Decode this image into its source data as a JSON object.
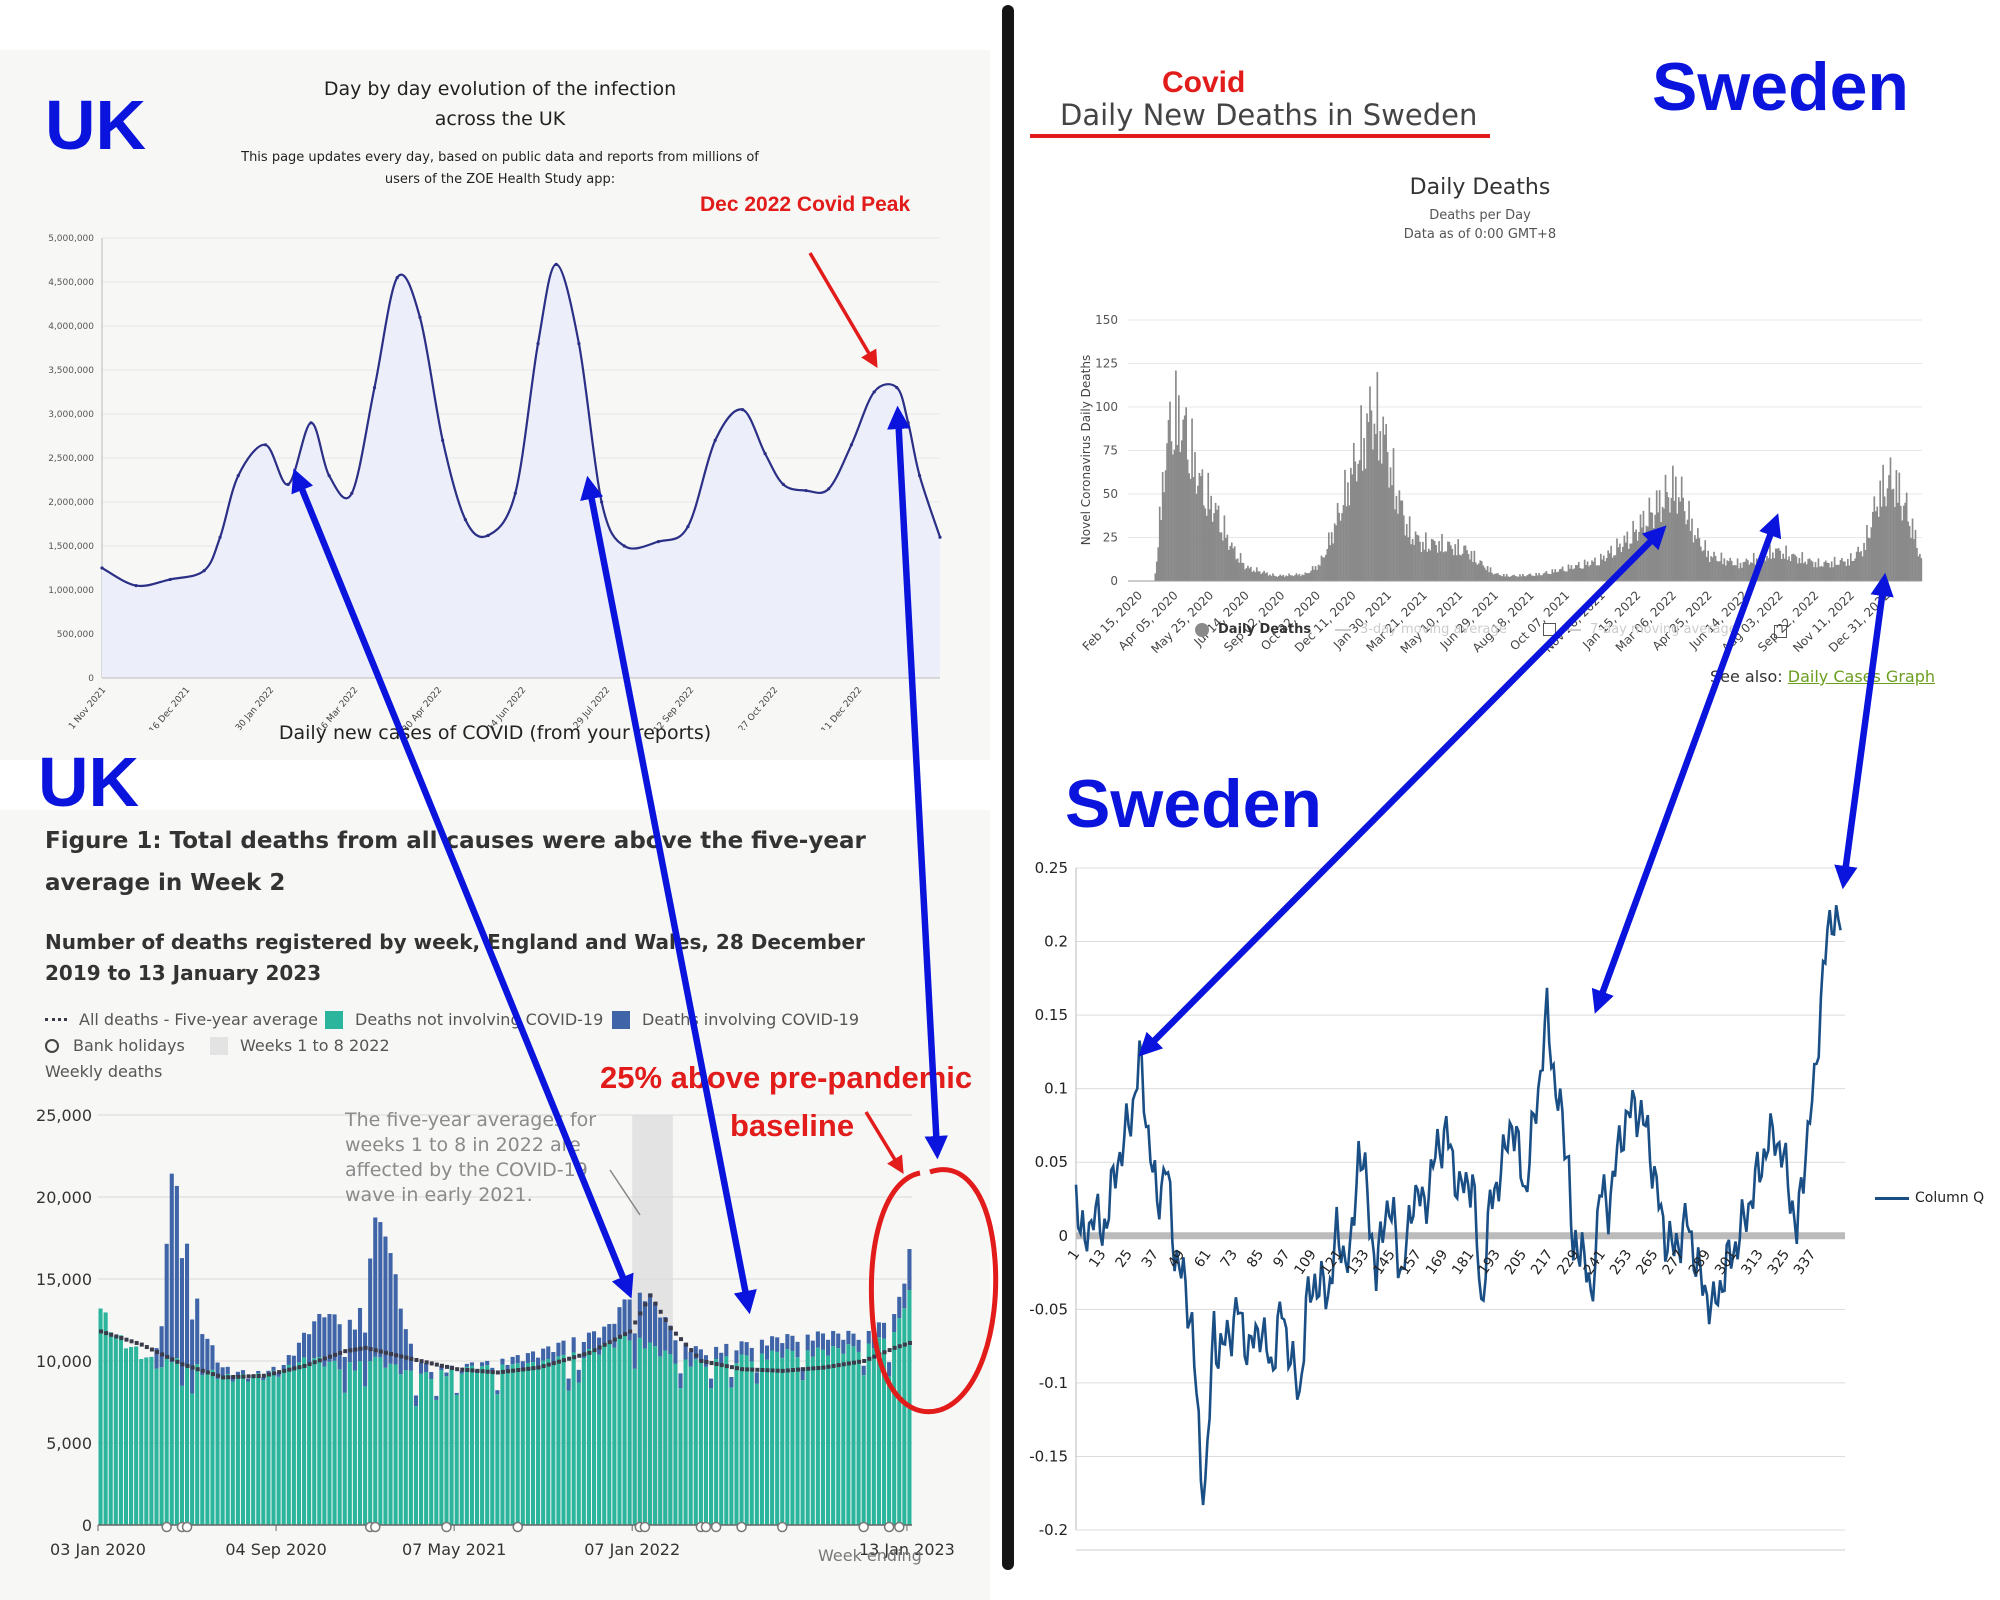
{
  "labels": {
    "uk_top": "UK",
    "uk_bottom": "UK",
    "sweden_top": "Sweden",
    "sweden_bottom": "Sweden",
    "covid": "Covid",
    "dec_peak": "Dec 2022 Covid Peak",
    "above_baseline_1": "25% above pre-pandemic",
    "above_baseline_2": "baseline"
  },
  "zoe": {
    "title_line1": "Day by day evolution of the infection",
    "title_line2": "across the UK",
    "subtitle_line1": "This page updates every day, based on public data and reports from millions of",
    "subtitle_line2": "users of the ZOE Health Study app:",
    "caption": "Daily new cases of COVID (from your reports)"
  },
  "ons": {
    "figure_title_1": "Figure 1: Total deaths from all causes were above the five-year",
    "figure_title_2": "average in Week 2",
    "subtitle_1": "Number of deaths registered by week, England and Wales, 28 December",
    "subtitle_2": "2019 to 13 January 2023",
    "legend_avg": "All deaths - Five-year average",
    "legend_not": "Deaths not involving COVID-19",
    "legend_inv": "Deaths involving COVID-19",
    "legend_bank": "Bank holidays",
    "legend_weeks": "Weeks 1 to 8 2022",
    "y_title": "Weekly deaths",
    "note_1": "The five-year averages for",
    "note_2": "weeks 1 to 8 in 2022 are",
    "note_3": "affected by the COVID-19",
    "note_4": "wave in early 2021.",
    "x_title": "Week ending"
  },
  "sweden_deaths": {
    "page_title": "Daily New Deaths in Sweden",
    "chart_title": "Daily Deaths",
    "chart_subtitle_1": "Deaths per Day",
    "chart_subtitle_2": "Data as of 0:00 GMT+8",
    "legend_daily": "Daily Deaths",
    "legend_3day": "3-day moving average",
    "legend_7day": "7-day moving average",
    "see_also": "See also: ",
    "see_also_link": "Daily Cases Graph"
  },
  "sweden_q": {
    "legend": "Column Q"
  },
  "colors": {
    "annotation_blue": "#0a14dc",
    "annotation_red": "#e21b1b",
    "zoe_line": "#2b2f86",
    "zoe_fill": "#eceefa",
    "ons_not_covid": "#2bb59c",
    "ons_covid": "#3f64a8",
    "ons_avg": "#3a3a4a",
    "sweden_bars": "#8a8a8a",
    "column_q": "#1a4f86"
  },
  "chart_data": [
    {
      "id": "zoe",
      "type": "area",
      "title": "Day by day evolution of the infection across the UK",
      "xlabel": "",
      "ylabel": "",
      "x_ticks": [
        "1 Nov 2021",
        "16 Dec 2021",
        "30 Jan 2022",
        "16 Mar 2022",
        "30 Apr 2022",
        "14 Jun 2022",
        "29 Jul 2022",
        "12 Sep 2022",
        "27 Oct 2022",
        "11 Dec 2022"
      ],
      "y_ticks": [
        "0",
        "500,000",
        "1,000,000",
        "1,500,000",
        "2,000,000",
        "2,500,000",
        "3,000,000",
        "3,500,000",
        "4,000,000",
        "4,500,000",
        "5,000,000"
      ],
      "ylim": [
        0,
        5000000
      ],
      "x_days": [
        0,
        15,
        30,
        45,
        52,
        60,
        72,
        82,
        92,
        100,
        110,
        120,
        130,
        140,
        150,
        160,
        170,
        182,
        192,
        200,
        210,
        220,
        230,
        245,
        258,
        270,
        282,
        292,
        300,
        310,
        320,
        330,
        340,
        350,
        355,
        360,
        369
      ],
      "values": [
        1250000,
        1050000,
        1120000,
        1220000,
        1600000,
        2300000,
        2650000,
        2200000,
        2900000,
        2300000,
        2100000,
        3300000,
        4550000,
        4100000,
        2700000,
        1800000,
        1620000,
        2100000,
        3800000,
        4700000,
        3800000,
        2000000,
        1500000,
        1550000,
        1720000,
        2700000,
        3050000,
        2550000,
        2200000,
        2130000,
        2150000,
        2650000,
        3250000,
        3300000,
        2900000,
        2300000,
        1600000
      ],
      "grid": true
    },
    {
      "id": "ons",
      "type": "bar",
      "title": "Number of deaths registered by week, England and Wales, 28 December 2019 to 13 January 2023",
      "xlabel": "Week ending",
      "ylabel": "Weekly deaths",
      "x_ticks": [
        "03 Jan 2020",
        "04 Sep 2020",
        "07 May 2021",
        "07 Jan 2022",
        "13 Jan 2023"
      ],
      "y_ticks": [
        "0",
        "5,000",
        "10,000",
        "15,000",
        "20,000",
        "25,000"
      ],
      "ylim": [
        0,
        25000
      ],
      "weeks": 160,
      "series": [
        {
          "name": "Deaths not involving COVID-19",
          "anchors_week": [
            0,
            3,
            8,
            10,
            12,
            14,
            16,
            20,
            25,
            30,
            34,
            36,
            40,
            42,
            46,
            50,
            53,
            58,
            62,
            66,
            70,
            78,
            86,
            92,
            98,
            104,
            110,
            114,
            118,
            126,
            134,
            142,
            150,
            156,
            158,
            159
          ],
          "anchors_value": [
            13200,
            11500,
            10400,
            10000,
            9600,
            10200,
            10100,
            9400,
            9000,
            9000,
            9200,
            9400,
            10000,
            10100,
            9800,
            9700,
            10300,
            9600,
            9100,
            9200,
            9500,
            9600,
            9800,
            10300,
            10700,
            11600,
            10600,
            10000,
            9900,
            10200,
            10500,
            10600,
            10900,
            11500,
            13600,
            14000
          ]
        },
        {
          "name": "Deaths involving COVID-19",
          "anchors_week": [
            0,
            10,
            12,
            14,
            16,
            18,
            20,
            24,
            30,
            36,
            40,
            44,
            50,
            52,
            54,
            56,
            58,
            60,
            62,
            66,
            70,
            78,
            86,
            92,
            100,
            104,
            108,
            114,
            118,
            126,
            134,
            142,
            150,
            156,
            158,
            159
          ],
          "anchors_value": [
            0,
            0,
            2500,
            11500,
            9500,
            5500,
            2500,
            500,
            100,
            300,
            1500,
            3000,
            2500,
            4000,
            8500,
            8000,
            5500,
            2500,
            800,
            300,
            150,
            300,
            700,
            900,
            1100,
            2500,
            3000,
            1100,
            700,
            800,
            900,
            1000,
            700,
            1100,
            1500,
            2500
          ]
        },
        {
          "name": "All deaths - Five-year average",
          "anchors_week": [
            0,
            8,
            16,
            24,
            32,
            40,
            48,
            52,
            60,
            70,
            78,
            86,
            96,
            104,
            108,
            112,
            118,
            126,
            134,
            142,
            150,
            156,
            159
          ],
          "anchors_value": [
            11800,
            11000,
            9800,
            9000,
            9100,
            9700,
            10600,
            10800,
            10200,
            9500,
            9300,
            9600,
            10500,
            11800,
            14000,
            12000,
            10000,
            9500,
            9400,
            9600,
            10000,
            10800,
            11100
          ]
        }
      ],
      "grid": true
    },
    {
      "id": "sweden_deaths",
      "type": "bar",
      "title": "Daily Deaths",
      "xlabel": "",
      "ylabel": "Novel Coronavirus Daily Deaths",
      "x_ticks": [
        "Feb 15, 2020",
        "Apr 05, 2020",
        "May 25, 2020",
        "Jul 14, 2020",
        "Sep 02, 2020",
        "Oct 22, 2020",
        "Dec 11, 2020",
        "Jan 30, 2021",
        "Mar 21, 2021",
        "May 10, 2021",
        "Jun 29, 2021",
        "Aug 18, 2021",
        "Oct 07, 2021",
        "Nov 26, 2021",
        "Jan 15, 2022",
        "Mar 06, 2022",
        "Apr 25, 2022",
        "Jun 14, 2022",
        "Aug 03, 2022",
        "Sep 22, 2022",
        "Nov 11, 2022",
        "Dec 31, 2022"
      ],
      "y_ticks": [
        "0",
        "25",
        "50",
        "75",
        "100",
        "125",
        "150"
      ],
      "ylim": [
        0,
        150
      ],
      "days": 1080,
      "anchors_day": [
        0,
        35,
        40,
        50,
        60,
        70,
        80,
        95,
        120,
        140,
        160,
        200,
        240,
        260,
        270,
        290,
        300,
        320,
        330,
        345,
        360,
        380,
        400,
        420,
        460,
        480,
        500,
        520,
        560,
        600,
        640,
        680,
        720,
        740,
        750,
        760,
        770,
        790,
        830,
        860,
        880,
        900,
        940,
        980,
        1000,
        1010,
        1020,
        1030,
        1040,
        1060,
        1080
      ],
      "anchors_value": [
        0,
        0,
        25,
        75,
        100,
        95,
        85,
        60,
        40,
        20,
        8,
        3,
        4,
        10,
        20,
        45,
        60,
        85,
        100,
        90,
        60,
        30,
        22,
        22,
        18,
        10,
        4,
        3,
        4,
        8,
        12,
        25,
        45,
        55,
        52,
        40,
        28,
        15,
        10,
        14,
        18,
        15,
        10,
        12,
        20,
        35,
        50,
        58,
        60,
        40,
        10
      ],
      "grid": true
    },
    {
      "id": "sweden_q",
      "type": "line",
      "title": "",
      "xlabel": "",
      "ylabel": "",
      "series_name": "Column Q",
      "x_ticks": [
        "1",
        "13",
        "25",
        "37",
        "49",
        "61",
        "73",
        "85",
        "97",
        "109",
        "121",
        "133",
        "145",
        "157",
        "169",
        "181",
        "193",
        "205",
        "217",
        "229",
        "241",
        "253",
        "265",
        "277",
        "289",
        "301",
        "313",
        "325",
        "337"
      ],
      "y_ticks": [
        "-0.2",
        "-0.15",
        "-0.1",
        "-0.05",
        "0",
        "0.05",
        "0.1",
        "0.15",
        "0.2",
        "0.25"
      ],
      "ylim": [
        -0.2,
        0.25
      ],
      "xlim": [
        1,
        352
      ],
      "anchors_x": [
        1,
        5,
        9,
        13,
        20,
        26,
        30,
        34,
        38,
        42,
        46,
        50,
        54,
        58,
        60,
        62,
        64,
        66,
        70,
        75,
        80,
        85,
        90,
        95,
        100,
        103,
        106,
        110,
        116,
        120,
        126,
        130,
        134,
        138,
        142,
        146,
        150,
        155,
        160,
        166,
        170,
        176,
        182,
        186,
        190,
        196,
        200,
        206,
        212,
        216,
        220,
        226,
        228,
        232,
        236,
        240,
        244,
        250,
        256,
        262,
        266,
        270,
        274,
        280,
        286,
        292,
        298,
        304,
        310,
        316,
        320,
        326,
        330,
        334,
        338,
        342,
        346,
        350
      ],
      "anchors_y": [
        0.03,
        -0.01,
        0.02,
        0.0,
        0.05,
        0.08,
        0.12,
        0.07,
        0.02,
        0.05,
        -0.01,
        -0.03,
        -0.06,
        -0.16,
        -0.17,
        -0.12,
        -0.06,
        -0.08,
        -0.07,
        -0.05,
        -0.08,
        -0.06,
        -0.09,
        -0.05,
        -0.09,
        -0.11,
        -0.05,
        -0.03,
        -0.04,
        0.0,
        -0.02,
        0.06,
        0.03,
        -0.03,
        0.02,
        0.01,
        -0.03,
        0.03,
        0.02,
        0.06,
        0.07,
        0.03,
        0.04,
        -0.05,
        0.02,
        0.05,
        0.08,
        0.03,
        0.1,
        0.15,
        0.1,
        0.05,
        -0.02,
        0.0,
        -0.05,
        0.03,
        0.02,
        0.07,
        0.09,
        0.07,
        0.03,
        0.0,
        -0.01,
        0.01,
        -0.03,
        -0.05,
        -0.02,
        0.0,
        0.03,
        0.06,
        0.07,
        0.04,
        0.0,
        0.06,
        0.1,
        0.18,
        0.22,
        0.21
      ],
      "grid": true
    }
  ]
}
